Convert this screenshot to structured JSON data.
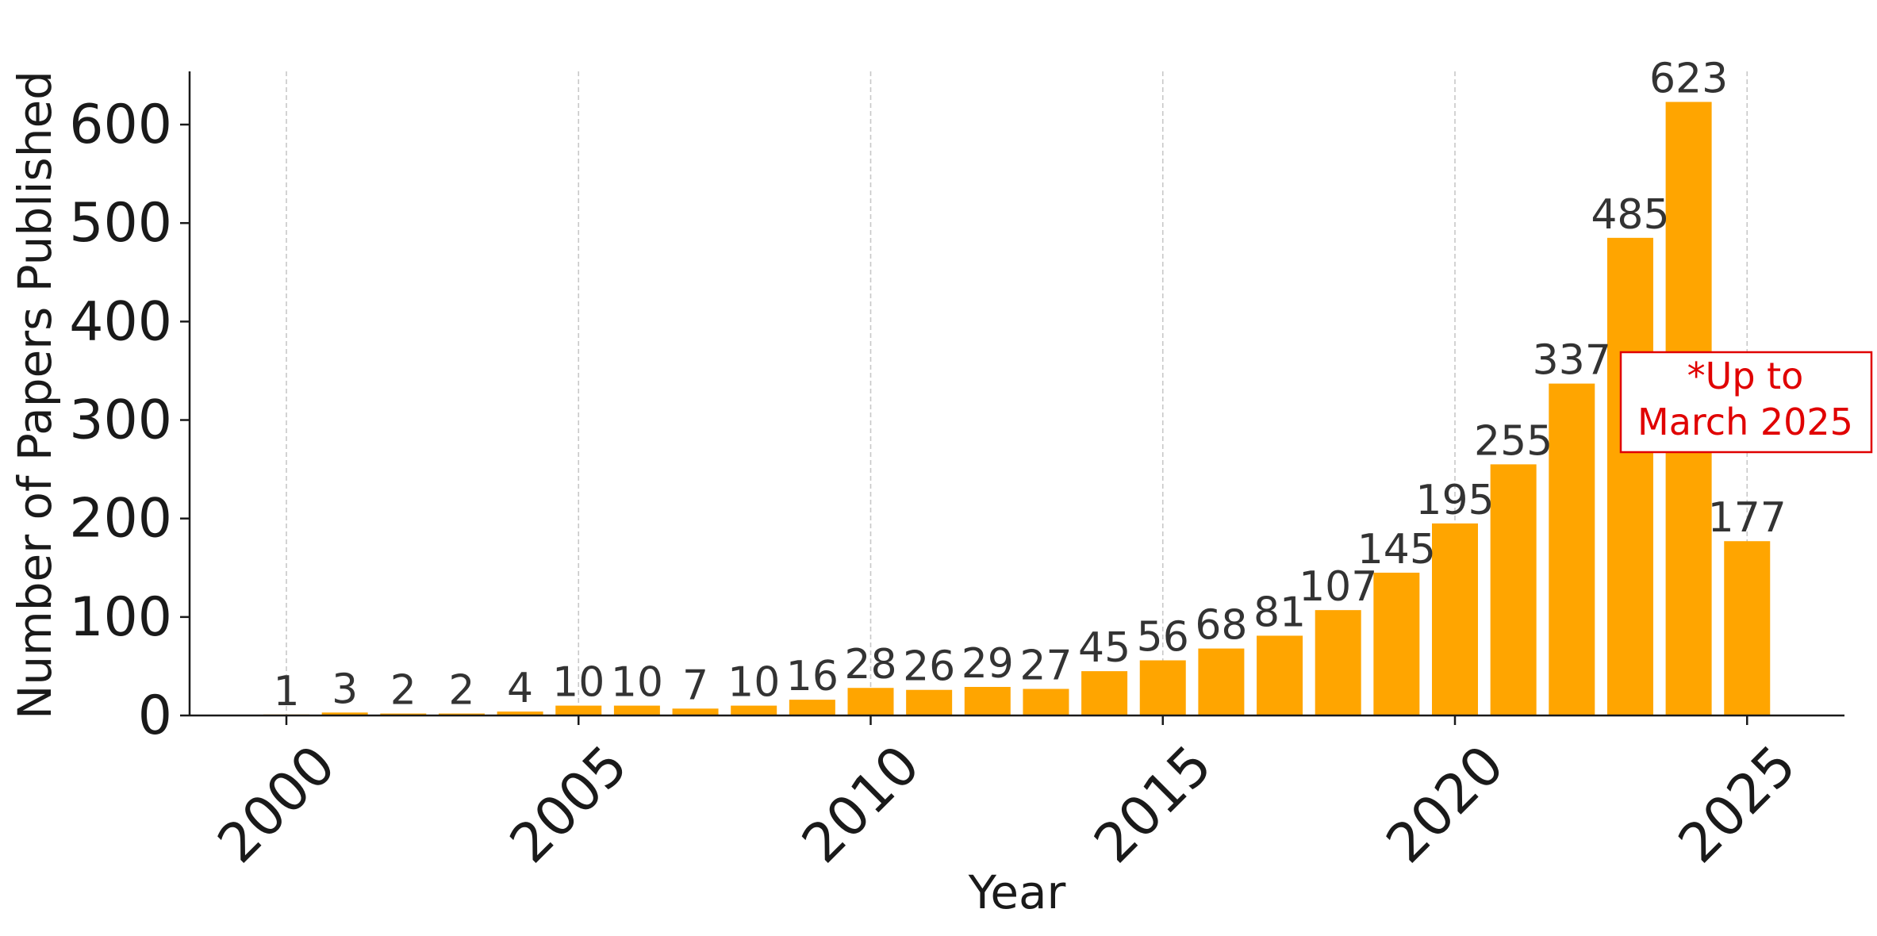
{
  "chart_data": {
    "type": "bar",
    "title": "",
    "xlabel": "Year",
    "ylabel": "Number of Papers Published",
    "x": [
      2000,
      2001,
      2002,
      2003,
      2004,
      2005,
      2006,
      2007,
      2008,
      2009,
      2010,
      2011,
      2012,
      2013,
      2014,
      2015,
      2016,
      2017,
      2018,
      2019,
      2020,
      2021,
      2022,
      2023,
      2024,
      2025
    ],
    "values": [
      1,
      3,
      2,
      2,
      4,
      10,
      10,
      7,
      10,
      16,
      28,
      26,
      29,
      27,
      45,
      56,
      68,
      81,
      107,
      145,
      195,
      255,
      337,
      485,
      623,
      177
    ],
    "data_labels": [
      "1",
      "3",
      "2",
      "2",
      "4",
      "10",
      "10",
      "7",
      "10",
      "16",
      "28",
      "26",
      "29",
      "27",
      "45",
      "56",
      "68",
      "81",
      "107",
      "145",
      "195",
      "255",
      "337",
      "485",
      "623",
      "177"
    ],
    "xticks": [
      "2000",
      "2005",
      "2010",
      "2015",
      "2020",
      "2025"
    ],
    "xtick_values": [
      2000,
      2005,
      2010,
      2015,
      2020,
      2025
    ],
    "yticks": [
      "0",
      "100",
      "200",
      "300",
      "400",
      "500",
      "600"
    ],
    "ytick_values": [
      0,
      100,
      200,
      300,
      400,
      500,
      600
    ],
    "xlim": [
      1998.5,
      2026.7
    ],
    "ylim": [
      0,
      654
    ],
    "grid": "vertical dashed at x ticks",
    "bar_color": "#ffa500",
    "annotation": {
      "lines": [
        "*Up to",
        "March 2025"
      ],
      "color": "#e00000",
      "placement": "right, near 2025 bar"
    }
  }
}
